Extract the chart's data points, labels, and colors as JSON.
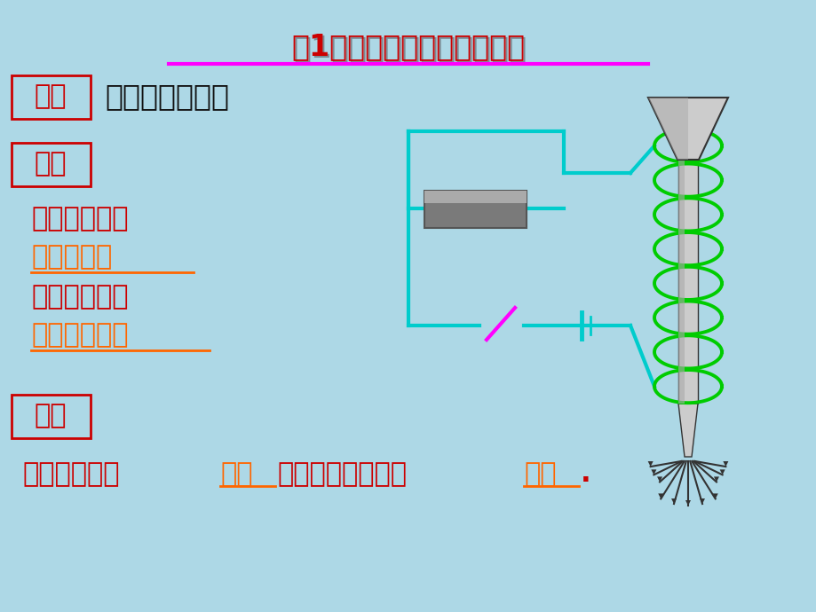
{
  "bg_color": "#add8e6",
  "title": "（1）研究电磁铁的磁性有无",
  "title_color": "#cc0000",
  "title_underline_color": "#ff00ff",
  "label_shiyan": "实验",
  "text_shiyan": "闭合和断开开关",
  "label_xianxiang": "现象",
  "text1": "通电时电磁铁",
  "text1_color": "#cc0000",
  "text2": "吸引大头针",
  "text2_color": "#ff6600",
  "text3": "断电时电磁铁",
  "text3_color": "#cc0000",
  "text4": "不吸引大头针",
  "text4_color": "#ff6600",
  "label_jielun": "结论",
  "label_color": "#cc0000",
  "conc_pre": "电磁铁通电时",
  "conc_w1": "产生",
  "conc_mid": "磁性，断电时磁性",
  "conc_w2": "消失",
  "conc_end": ".",
  "conc_color": "#cc0000",
  "conc_highlight": "#ff6600",
  "circuit_color": "#00cccc",
  "coil_color": "#00cc00",
  "switch_color": "#ff00ff",
  "nail_color": "#555555",
  "nail_dark": "#333333"
}
